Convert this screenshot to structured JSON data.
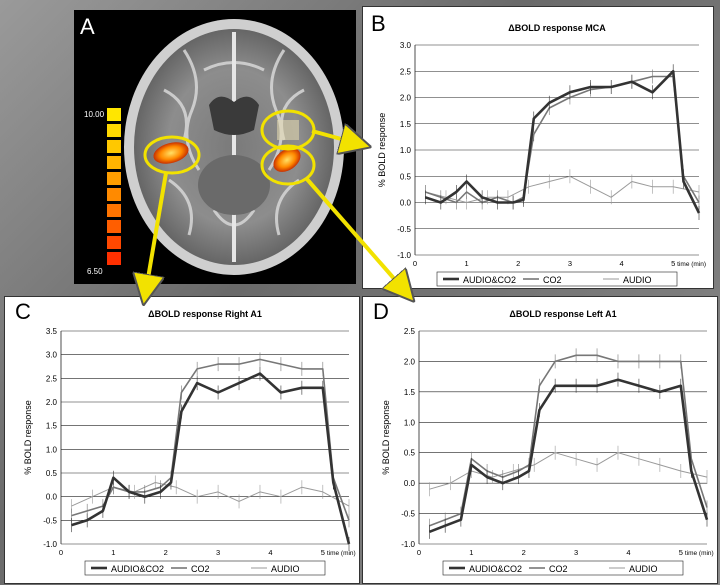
{
  "panels": {
    "a": {
      "letter": "A",
      "scale_max": "10.00",
      "scale_min": "6.50",
      "scale_colors": [
        "#ffe600",
        "#ffd800",
        "#ffc800",
        "#ffb400",
        "#ff9e00",
        "#ff8a00",
        "#ff7400",
        "#ff5e00",
        "#ff4800",
        "#ff3000"
      ]
    },
    "b": {
      "letter": "B"
    },
    "c": {
      "letter": "C"
    },
    "d": {
      "letter": "D"
    }
  },
  "colors": {
    "highlight": "#f2e200",
    "audio_co2": "#333333",
    "co2": "#777777",
    "audio": "#9a9a9a"
  },
  "chart_data": [
    {
      "id": "b",
      "type": "line",
      "title": "ΔBOLD response MCA",
      "ylabel": "% BOLD response",
      "xlabel": "time (min)",
      "xlim": [
        0,
        5.5
      ],
      "ylim": [
        -1.0,
        3.0
      ],
      "yticks": [
        "3.0",
        "2.5",
        "2.0",
        "1.5",
        "1.0",
        "0.5",
        "0.0",
        "-0.5",
        "-1.0"
      ],
      "xticks": [
        "0",
        "1",
        "2",
        "3",
        "4",
        "5"
      ],
      "grid": true,
      "legend": [
        "AUDIO&CO2",
        "CO2",
        "AUDIO"
      ],
      "legend_position": "bottom",
      "series": [
        {
          "name": "AUDIO&CO2",
          "x": [
            0.2,
            0.5,
            0.8,
            1.0,
            1.3,
            1.6,
            1.9,
            2.1,
            2.3,
            2.6,
            3.0,
            3.4,
            3.8,
            4.2,
            4.6,
            5.0,
            5.2,
            5.5
          ],
          "y": [
            0.1,
            0.0,
            0.2,
            0.4,
            0.1,
            0.0,
            0.0,
            0.05,
            1.6,
            1.9,
            2.1,
            2.2,
            2.2,
            2.3,
            2.1,
            2.5,
            0.4,
            -0.2
          ]
        },
        {
          "name": "CO2",
          "x": [
            0.2,
            0.5,
            0.8,
            1.0,
            1.3,
            1.6,
            1.9,
            2.1,
            2.3,
            2.6,
            3.0,
            3.4,
            3.8,
            4.2,
            4.6,
            5.0,
            5.2,
            5.5
          ],
          "y": [
            0.2,
            0.1,
            0.0,
            0.2,
            0.0,
            0.1,
            0.0,
            0.1,
            1.3,
            1.8,
            2.0,
            2.15,
            2.2,
            2.3,
            2.4,
            2.4,
            0.5,
            0.0
          ]
        },
        {
          "name": "AUDIO",
          "x": [
            0.2,
            0.6,
            1.0,
            1.4,
            1.8,
            2.2,
            2.6,
            3.0,
            3.4,
            3.8,
            4.2,
            4.6,
            5.0,
            5.5
          ],
          "y": [
            0.2,
            0.1,
            0.0,
            0.1,
            0.1,
            0.3,
            0.4,
            0.5,
            0.3,
            0.1,
            0.4,
            0.3,
            0.3,
            0.2
          ]
        }
      ]
    },
    {
      "id": "c",
      "type": "line",
      "title": "ΔBOLD response Right A1",
      "ylabel": "% BOLD response",
      "xlabel": "time (min)",
      "xlim": [
        0,
        5.5
      ],
      "ylim": [
        -1.0,
        3.5
      ],
      "yticks": [
        "3.5",
        "3.0",
        "2.5",
        "2.0",
        "1.5",
        "1.0",
        "0.5",
        "0.0",
        "-0.5",
        "-1.0"
      ],
      "xticks": [
        "0",
        "1",
        "2",
        "3",
        "4",
        "5"
      ],
      "grid": true,
      "legend": [
        "AUDIO&CO2",
        "CO2",
        "AUDIO"
      ],
      "legend_position": "bottom",
      "series": [
        {
          "name": "AUDIO&CO2",
          "x": [
            0.2,
            0.5,
            0.8,
            1.0,
            1.3,
            1.6,
            1.9,
            2.1,
            2.3,
            2.6,
            3.0,
            3.4,
            3.8,
            4.2,
            4.6,
            5.0,
            5.2,
            5.5
          ],
          "y": [
            -0.6,
            -0.5,
            -0.3,
            0.4,
            0.1,
            0.0,
            0.1,
            0.3,
            1.8,
            2.4,
            2.2,
            2.4,
            2.6,
            2.2,
            2.3,
            2.3,
            0.3,
            -1.0
          ]
        },
        {
          "name": "CO2",
          "x": [
            0.2,
            0.5,
            0.8,
            1.0,
            1.3,
            1.6,
            1.9,
            2.1,
            2.3,
            2.6,
            3.0,
            3.4,
            3.8,
            4.2,
            4.6,
            5.0,
            5.2,
            5.5
          ],
          "y": [
            -0.4,
            -0.3,
            -0.2,
            0.2,
            0.1,
            0.1,
            0.2,
            0.4,
            2.2,
            2.7,
            2.8,
            2.8,
            2.9,
            2.8,
            2.7,
            2.7,
            0.4,
            -0.5
          ]
        },
        {
          "name": "AUDIO",
          "x": [
            0.2,
            0.6,
            1.0,
            1.4,
            1.8,
            2.2,
            2.6,
            3.0,
            3.4,
            3.8,
            4.2,
            4.6,
            5.0,
            5.5
          ],
          "y": [
            -0.2,
            0.0,
            0.2,
            0.1,
            0.3,
            0.2,
            0.0,
            0.1,
            -0.1,
            0.1,
            0.0,
            0.2,
            0.1,
            -0.2
          ]
        }
      ]
    },
    {
      "id": "d",
      "type": "line",
      "title": "ΔBOLD response Left A1",
      "ylabel": "% BOLD response",
      "xlabel": "time (min)",
      "xlim": [
        0,
        5.5
      ],
      "ylim": [
        -1.0,
        2.5
      ],
      "yticks": [
        "2.5",
        "2.0",
        "1.5",
        "1.0",
        "0.5",
        "0.0",
        "-0.5",
        "-1.0"
      ],
      "xticks": [
        "0",
        "1",
        "2",
        "3",
        "4",
        "5"
      ],
      "grid": true,
      "legend": [
        "AUDIO&CO2",
        "CO2",
        "AUDIO"
      ],
      "legend_position": "bottom",
      "series": [
        {
          "name": "AUDIO&CO2",
          "x": [
            0.2,
            0.5,
            0.8,
            1.0,
            1.3,
            1.6,
            1.9,
            2.1,
            2.3,
            2.6,
            3.0,
            3.4,
            3.8,
            4.2,
            4.6,
            5.0,
            5.2,
            5.5
          ],
          "y": [
            -0.8,
            -0.7,
            -0.6,
            0.3,
            0.1,
            0.0,
            0.1,
            0.2,
            1.2,
            1.6,
            1.6,
            1.6,
            1.7,
            1.6,
            1.5,
            1.6,
            0.2,
            -0.6
          ]
        },
        {
          "name": "CO2",
          "x": [
            0.2,
            0.5,
            0.8,
            1.0,
            1.3,
            1.6,
            1.9,
            2.1,
            2.3,
            2.6,
            3.0,
            3.4,
            3.8,
            4.2,
            4.6,
            5.0,
            5.2,
            5.5
          ],
          "y": [
            -0.7,
            -0.6,
            -0.5,
            0.4,
            0.2,
            0.1,
            0.2,
            0.3,
            1.6,
            2.0,
            2.1,
            2.1,
            2.0,
            2.0,
            2.0,
            2.0,
            0.4,
            -0.4
          ]
        },
        {
          "name": "AUDIO",
          "x": [
            0.2,
            0.6,
            1.0,
            1.4,
            1.8,
            2.2,
            2.6,
            3.0,
            3.4,
            3.8,
            4.2,
            4.6,
            5.0,
            5.5
          ],
          "y": [
            -0.1,
            0.0,
            0.2,
            0.1,
            0.2,
            0.3,
            0.5,
            0.4,
            0.3,
            0.5,
            0.4,
            0.3,
            0.2,
            0.1
          ]
        }
      ]
    }
  ]
}
